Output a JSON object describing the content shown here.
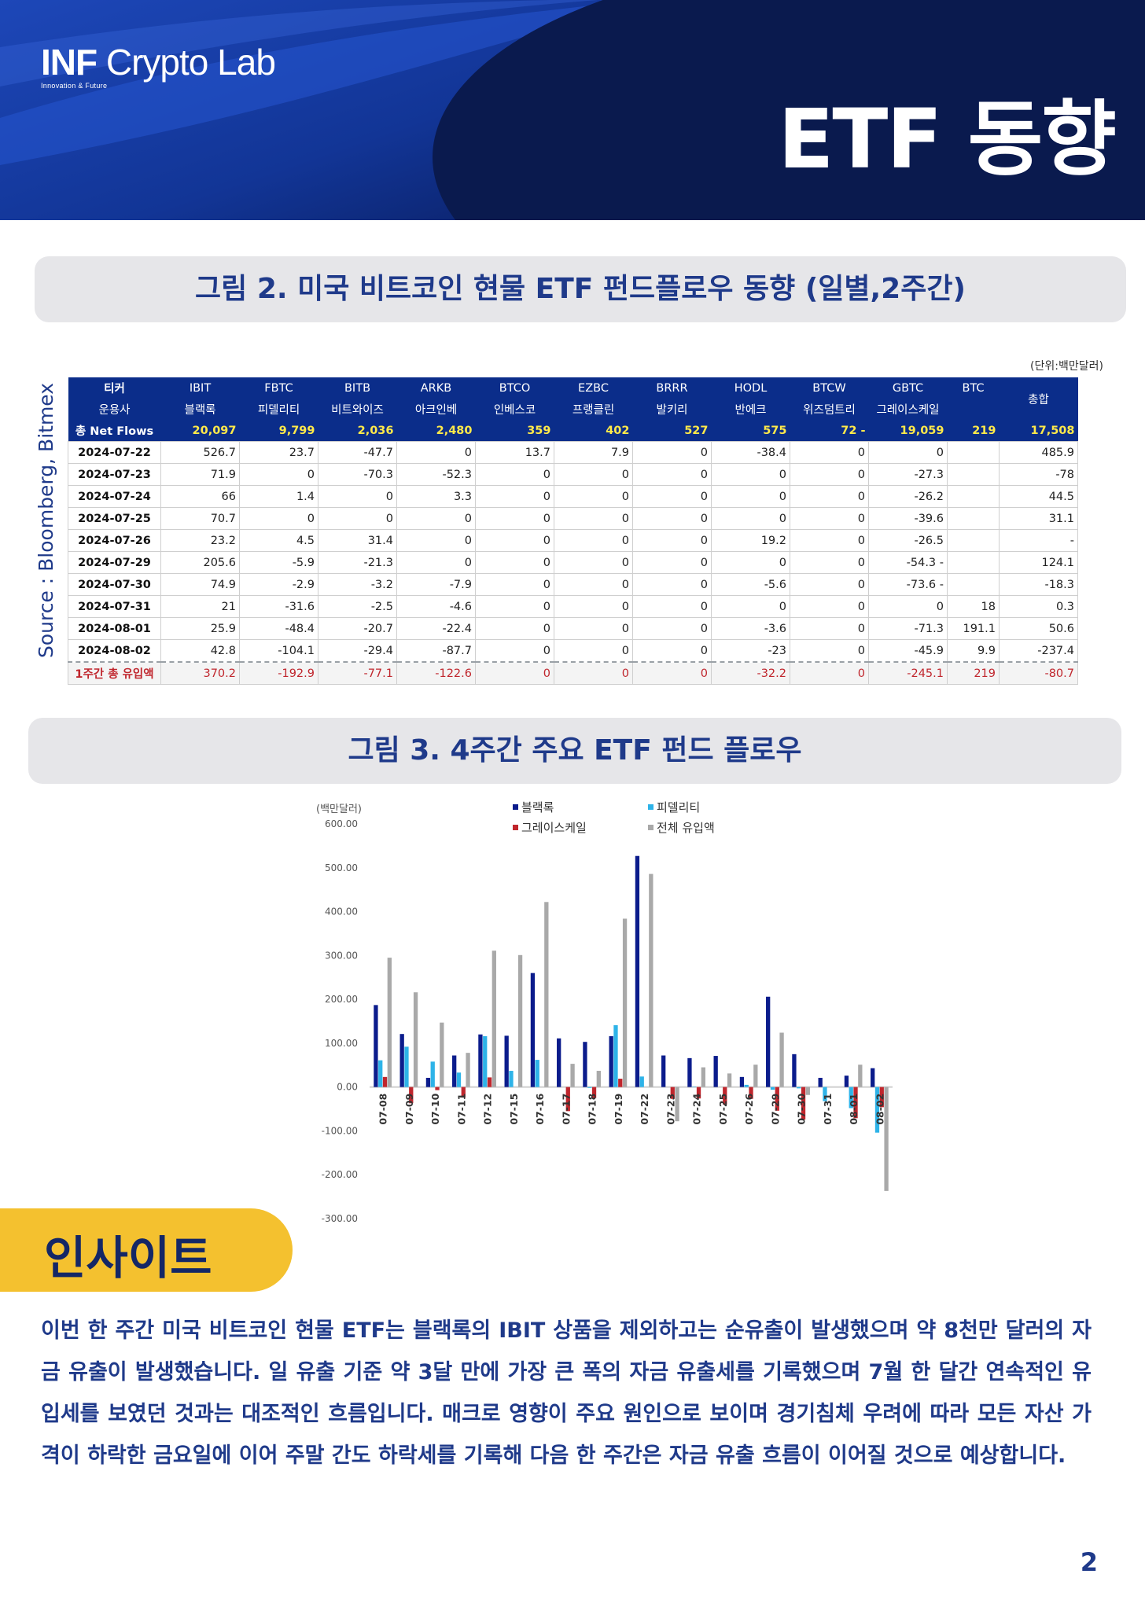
{
  "header": {
    "brand_bold": "INF",
    "brand_rest": "Crypto Lab",
    "tagline": "Innovation & Future",
    "title": "ETF 동향"
  },
  "figure2": {
    "title": "그림 2.  미국 비트코인 현물 ETF 펀드플로우 동향 (일별,2주간)",
    "unit_note": "(단위:백만달러)",
    "source": "Source : Bloomberg, Bitmex",
    "row_label_ticker": "티커",
    "row_label_issuer": "운용사",
    "total_label": "총합",
    "tickers": [
      "IBIT",
      "FBTC",
      "BITB",
      "ARKB",
      "BTCO",
      "EZBC",
      "BRRR",
      "HODL",
      "BTCW",
      "GBTC",
      "BTC"
    ],
    "issuers": [
      "블랙록",
      "피델리티",
      "비트와이즈",
      "아크인베",
      "인베스코",
      "프랭클린",
      "발키리",
      "반에크",
      "위즈덤트리",
      "그레이스케일",
      ""
    ],
    "net_flows": {
      "label": "총 Net Flows",
      "values": [
        "20,097",
        "9,799",
        "2,036",
        "2,480",
        "359",
        "402",
        "527",
        "575",
        "72 -",
        "19,059",
        "219",
        "17,508"
      ]
    },
    "rows": [
      {
        "date": "2024-07-22",
        "values": [
          "526.7",
          "23.7",
          "-47.7",
          "0",
          "13.7",
          "7.9",
          "0",
          "-38.4",
          "0",
          "0",
          "",
          "485.9"
        ]
      },
      {
        "date": "2024-07-23",
        "values": [
          "71.9",
          "0",
          "-70.3",
          "-52.3",
          "0",
          "0",
          "0",
          "0",
          "0",
          "-27.3",
          "",
          "-78"
        ]
      },
      {
        "date": "2024-07-24",
        "values": [
          "66",
          "1.4",
          "0",
          "3.3",
          "0",
          "0",
          "0",
          "0",
          "0",
          "-26.2",
          "",
          "44.5"
        ]
      },
      {
        "date": "2024-07-25",
        "values": [
          "70.7",
          "0",
          "0",
          "0",
          "0",
          "0",
          "0",
          "0",
          "0",
          "-39.6",
          "",
          "31.1"
        ]
      },
      {
        "date": "2024-07-26",
        "values": [
          "23.2",
          "4.5",
          "31.4",
          "0",
          "0",
          "0",
          "0",
          "19.2",
          "0",
          "-26.5",
          "",
          "-"
        ]
      },
      {
        "date": "2024-07-29",
        "values": [
          "205.6",
          "-5.9",
          "-21.3",
          "0",
          "0",
          "0",
          "0",
          "0",
          "0",
          "-54.3 -",
          "",
          "124.1"
        ]
      },
      {
        "date": "2024-07-30",
        "values": [
          "74.9",
          "-2.9",
          "-3.2",
          "-7.9",
          "0",
          "0",
          "0",
          "-5.6",
          "0",
          "-73.6 -",
          "",
          "-18.3"
        ]
      },
      {
        "date": "2024-07-31",
        "values": [
          "21",
          "-31.6",
          "-2.5",
          "-4.6",
          "0",
          "0",
          "0",
          "0",
          "0",
          "0",
          "18",
          "0.3"
        ]
      },
      {
        "date": "2024-08-01",
        "values": [
          "25.9",
          "-48.4",
          "-20.7",
          "-22.4",
          "0",
          "0",
          "0",
          "-3.6",
          "0",
          "-71.3",
          "191.1",
          "50.6"
        ]
      },
      {
        "date": "2024-08-02",
        "values": [
          "42.8",
          "-104.1",
          "-29.4",
          "-87.7",
          "0",
          "0",
          "0",
          "-23",
          "0",
          "-45.9",
          "9.9",
          "-237.4"
        ]
      }
    ],
    "week_total": {
      "label": "1주간 총 유입액",
      "values": [
        "370.2",
        "-192.9",
        "-77.1",
        "-122.6",
        "0",
        "0",
        "0",
        "-32.2",
        "0",
        "-245.1",
        "219",
        "-80.7"
      ]
    }
  },
  "figure3": {
    "title": "그림 3.  4주간 주요 ETF 펀드 플로우"
  },
  "chart_data": {
    "type": "bar",
    "title": "",
    "ylabel": "(백만달러)",
    "xlabel": "",
    "ylim": [
      -300,
      600
    ],
    "yticks": [
      "600.00",
      "500.00",
      "400.00",
      "300.00",
      "200.00",
      "100.00",
      "0.00",
      "-100.00",
      "-200.00",
      "-300.00"
    ],
    "legend_position": "top",
    "categories": [
      "07-08",
      "07-09",
      "07-10",
      "07-11",
      "07-12",
      "07-15",
      "07-16",
      "07-17",
      "07-18",
      "07-19",
      "07-22",
      "07-23",
      "07-24",
      "07-25",
      "07-26",
      "07-29",
      "07-30",
      "07-31",
      "08-01",
      "08-02"
    ],
    "series": [
      {
        "name": "블랙록",
        "color": "#0b1c8c",
        "values": [
          187,
          121,
          21,
          72,
          120,
          117,
          260,
          111,
          103,
          116,
          527,
          72,
          66,
          71,
          23,
          206,
          75,
          21,
          26,
          43
        ]
      },
      {
        "name": "피델리티",
        "color": "#2eb3e8",
        "values": [
          61,
          92,
          58,
          33,
          116,
          37,
          62,
          0,
          -2,
          141,
          24,
          0,
          1,
          0,
          5,
          -6,
          -3,
          -32,
          -48,
          -104
        ]
      },
      {
        "name": "그레이스케일",
        "color": "#c0262d",
        "values": [
          23,
          -37,
          -7,
          -24,
          22,
          0,
          0,
          -55,
          -25,
          19,
          0,
          -27,
          -26,
          -40,
          -27,
          -54,
          -74,
          0,
          -71,
          -46
        ]
      },
      {
        "name": "전체 유입액",
        "color": "#a9a9a9",
        "values": [
          295,
          216,
          147,
          78,
          311,
          301,
          422,
          53,
          37,
          384,
          486,
          -78,
          45,
          31,
          51,
          124,
          -18,
          0,
          51,
          -237
        ]
      }
    ]
  },
  "insight": {
    "title": "인사이트",
    "body": "이번 한 주간 미국 비트코인 현물 ETF는 블랙록의 IBIT 상품을 제외하고는 순유출이 발생했으며 약 8천만 달러의 자금 유출이 발생했습니다. 일 유출 기준 약 3달 만에 가장 큰 폭의 자금 유출세를 기록했으며 7월 한 달간 연속적인 유입세를 보였던 것과는 대조적인 흐름입니다. 매크로 영향이 주요 원인으로 보이며 경기침체 우려에 따라 모든 자산 가격이 하락한 금요일에 이어 주말 간도 하락세를 기록해 다음 한 주간은 자금 유출 흐름이 이어질 것으로 예상합니다."
  },
  "page_number": "2"
}
